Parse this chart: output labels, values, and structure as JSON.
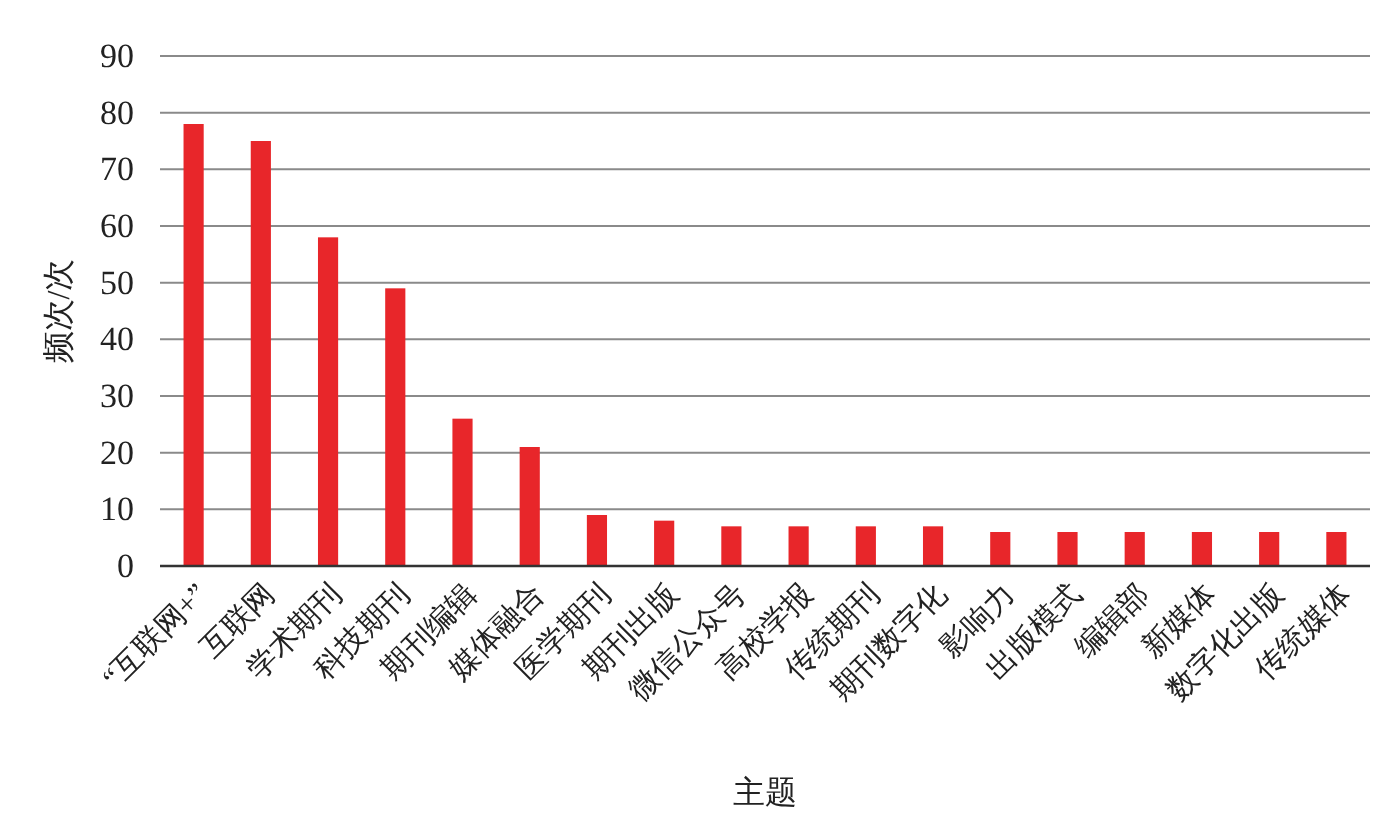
{
  "chart_data": {
    "type": "bar",
    "xlabel": "主题",
    "ylabel": "频次/次",
    "categories": [
      "“互联网+”",
      "互联网",
      "学术期刊",
      "科技期刊",
      "期刊编辑",
      "媒体融合",
      "医学期刊",
      "期刊出版",
      "微信公众号",
      "高校学报",
      "传统期刊",
      "期刊数字化",
      "影响力",
      "出版模式",
      "编辑部",
      "新媒体",
      "数字化出版",
      "传统媒体"
    ],
    "values": [
      78,
      75,
      58,
      49,
      26,
      21,
      9,
      8,
      7,
      7,
      7,
      7,
      6,
      6,
      6,
      6,
      6,
      6
    ],
    "color": "#e8262a",
    "ylim": [
      0,
      90
    ],
    "yticks": [
      0,
      10,
      20,
      30,
      40,
      50,
      60,
      70,
      80,
      90
    ],
    "grid": "y"
  }
}
